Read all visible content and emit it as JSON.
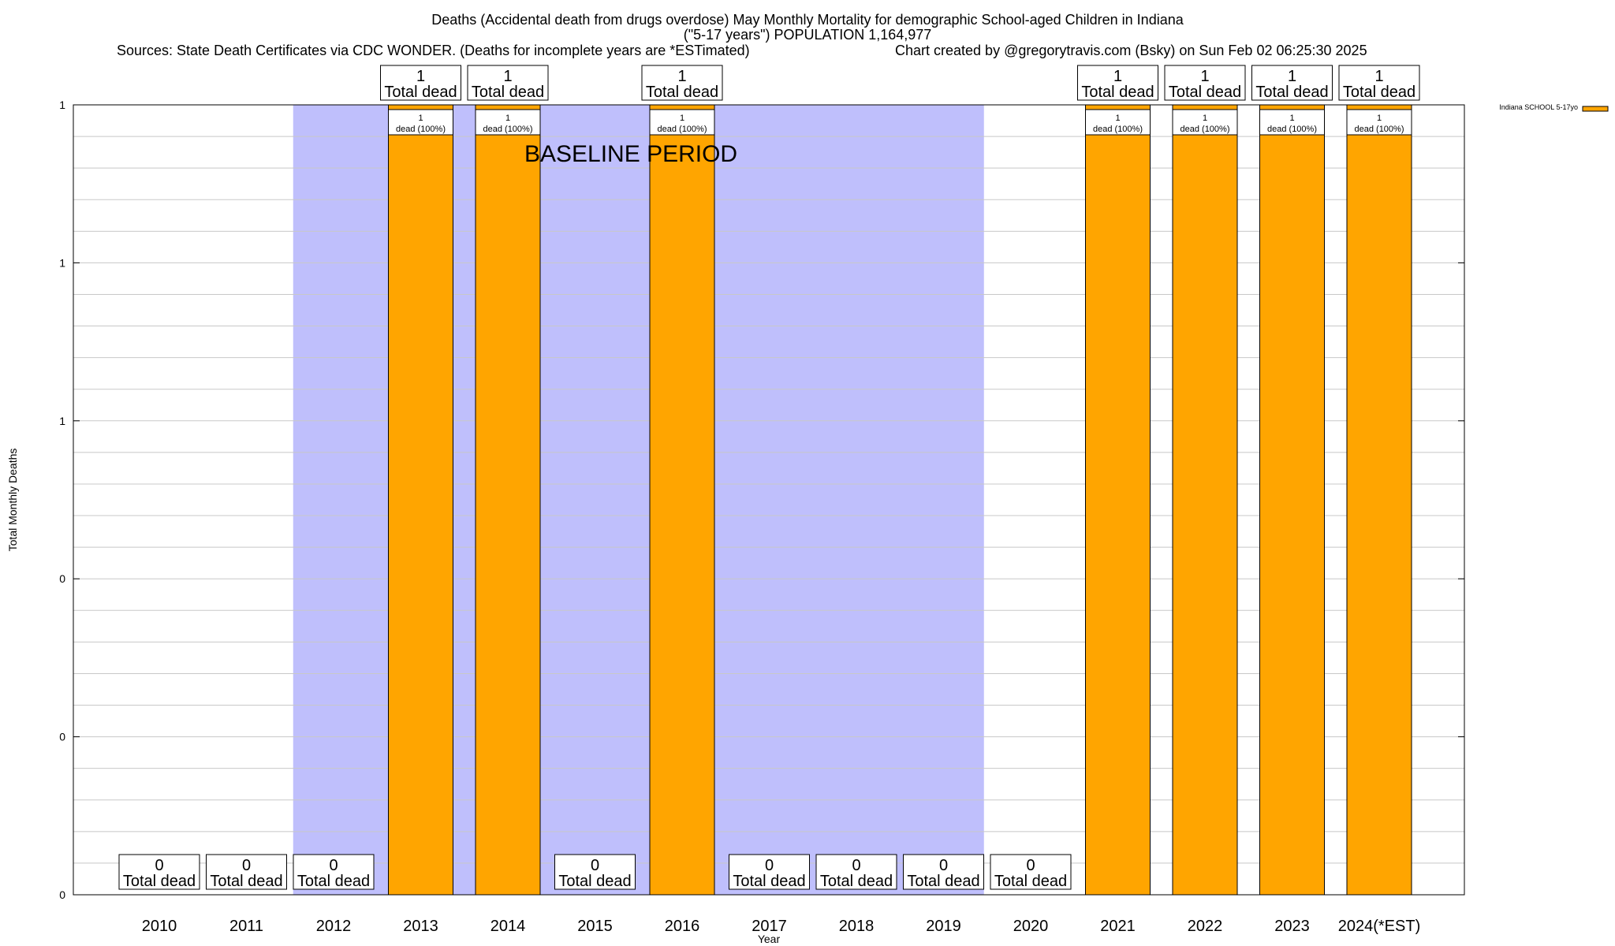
{
  "header": {
    "title_line1": "Deaths (Accidental death from drugs overdose) May Monthly Mortality for demographic School-aged Children in Indiana",
    "title_line2": "(\"5-17 years\") POPULATION 1,164,977",
    "sources": "Sources: State Death Certificates via CDC WONDER. (Deaths for incomplete years are *ESTimated)",
    "credit": "Chart created by @gregorytravis.com (Bsky) on Sun Feb 02 06:25:30 2025"
  },
  "chart_data": {
    "type": "bar",
    "xlabel": "Year",
    "ylabel": "Total Monthly Deaths",
    "ylim": [
      0,
      1
    ],
    "y_tick_labels": [
      "0",
      "0",
      "0",
      "1",
      "1",
      "1"
    ],
    "grid": true,
    "legend_position": "top-right",
    "categories": [
      "2010",
      "2011",
      "2012",
      "2013",
      "2014",
      "2015",
      "2016",
      "2017",
      "2018",
      "2019",
      "2020",
      "2021",
      "2022",
      "2023",
      "2024(*EST)"
    ],
    "series": [
      {
        "name": "Indiana SCHOOL 5-17yo",
        "color": "#ffa500",
        "values": [
          0,
          0,
          0,
          1,
          1,
          0,
          1,
          0,
          0,
          0,
          0,
          1,
          1,
          1,
          1
        ]
      }
    ],
    "total_label_suffix": "Total dead",
    "segment_label_suffix": "dead (100%)",
    "baseline_shading": {
      "label": "BASELINE PERIOD",
      "from": "2012",
      "to": "2019",
      "color": "#bfbffc"
    }
  }
}
